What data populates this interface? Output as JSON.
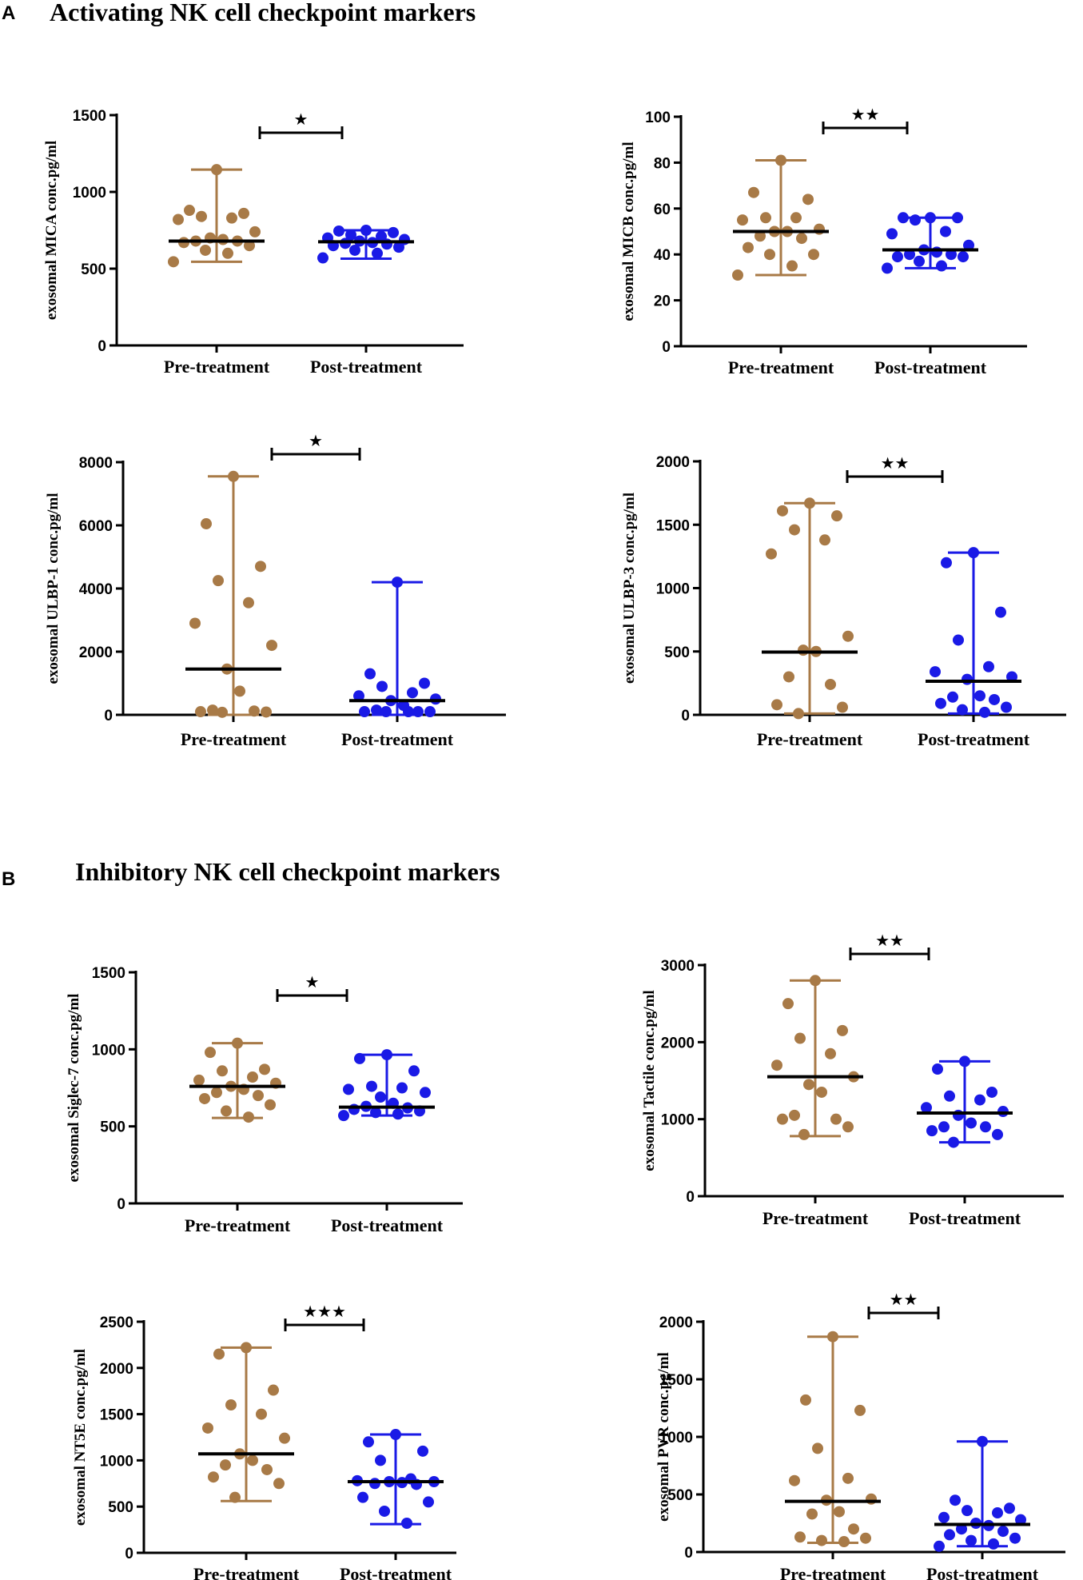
{
  "figure": {
    "sections": [
      {
        "letter": "A",
        "title": "Activating  NK cell checkpoint markers"
      },
      {
        "letter": "B",
        "title": "Inhibitory  NK cell checkpoint markers"
      }
    ],
    "colors": {
      "pre": "#A87A47",
      "post": "#1A1AE6",
      "median": "#000000",
      "axis": "#000000"
    }
  },
  "chart_data": [
    {
      "id": "mica",
      "type": "scatter",
      "ylabel": "exosomal MICA conc.pg/ml",
      "ylim": [
        0,
        1500
      ],
      "yticks": [
        0,
        500,
        1000,
        1500
      ],
      "categories": [
        "Pre-treatment",
        "Post-treatment"
      ],
      "significance": "★",
      "series": [
        {
          "name": "Pre-treatment",
          "median": 680,
          "min": 545,
          "max": 1145,
          "values": [
            1145,
            880,
            860,
            840,
            830,
            820,
            740,
            700,
            690,
            680,
            680,
            670,
            650,
            620,
            600,
            545
          ]
        },
        {
          "name": "Post-treatment",
          "median": 675,
          "min": 565,
          "max": 750,
          "values": [
            750,
            745,
            735,
            720,
            710,
            700,
            690,
            680,
            670,
            665,
            660,
            650,
            640,
            620,
            600,
            570
          ]
        }
      ]
    },
    {
      "id": "micb",
      "type": "scatter",
      "ylabel": "exosomal MICB conc.pg/ml",
      "ylim": [
        0,
        100
      ],
      "yticks": [
        0,
        20,
        40,
        60,
        80,
        100
      ],
      "categories": [
        "Pre-treatment",
        "Post-treatment"
      ],
      "significance": "★★",
      "series": [
        {
          "name": "Pre-treatment",
          "median": 50,
          "min": 31,
          "max": 81,
          "values": [
            81,
            67,
            64,
            56,
            56,
            55,
            51,
            50,
            50,
            48,
            47,
            43,
            40,
            40,
            35,
            31
          ]
        },
        {
          "name": "Post-treatment",
          "median": 42,
          "min": 34,
          "max": 56,
          "values": [
            56,
            56,
            56,
            55,
            50,
            49,
            44,
            42,
            41,
            40,
            40,
            39,
            39,
            37,
            35,
            34
          ]
        }
      ]
    },
    {
      "id": "ulbp1",
      "type": "scatter",
      "ylabel": "exosomal ULBP-1 conc.pg/ml",
      "ylim": [
        0,
        8000
      ],
      "yticks": [
        0,
        2000,
        4000,
        6000,
        8000
      ],
      "categories": [
        "Pre-treatment",
        "Post-treatment"
      ],
      "significance": "★",
      "series": [
        {
          "name": "Pre-treatment",
          "median": 1450,
          "min": 0,
          "max": 7550,
          "values": [
            7550,
            6050,
            4700,
            4250,
            3550,
            2900,
            2200,
            1450,
            750,
            150,
            120,
            100,
            90,
            80
          ]
        },
        {
          "name": "Post-treatment",
          "median": 450,
          "min": 0,
          "max": 4200,
          "values": [
            4200,
            1300,
            1000,
            900,
            700,
            600,
            500,
            450,
            300,
            150,
            100,
            100,
            100,
            100,
            100
          ]
        }
      ]
    },
    {
      "id": "ulbp3",
      "type": "scatter",
      "ylabel": "exosomal ULBP-3 conc.pg/ml",
      "ylim": [
        0,
        2000
      ],
      "yticks": [
        0,
        500,
        1000,
        1500,
        2000
      ],
      "categories": [
        "Pre-treatment",
        "Post-treatment"
      ],
      "significance": "★★",
      "series": [
        {
          "name": "Pre-treatment",
          "median": 495,
          "min": 10,
          "max": 1670,
          "values": [
            1670,
            1610,
            1570,
            1460,
            1380,
            1270,
            620,
            510,
            500,
            300,
            240,
            80,
            60,
            10
          ]
        },
        {
          "name": "Post-treatment",
          "median": 265,
          "min": 10,
          "max": 1280,
          "values": [
            1280,
            1200,
            810,
            590,
            380,
            340,
            300,
            280,
            150,
            140,
            120,
            90,
            60,
            40,
            20
          ]
        }
      ]
    },
    {
      "id": "siglec7",
      "type": "scatter",
      "ylabel": "exosomal Siglec-7 conc.pg/ml",
      "ylim": [
        0,
        1500
      ],
      "yticks": [
        0,
        500,
        1000,
        1500
      ],
      "categories": [
        "Pre-treatment",
        "Post-treatment"
      ],
      "significance": "★",
      "series": [
        {
          "name": "Pre-treatment",
          "median": 760,
          "min": 555,
          "max": 1040,
          "values": [
            1040,
            980,
            870,
            860,
            820,
            800,
            780,
            760,
            740,
            720,
            700,
            680,
            640,
            600,
            560
          ]
        },
        {
          "name": "Post-treatment",
          "median": 625,
          "min": 570,
          "max": 965,
          "values": [
            965,
            940,
            860,
            760,
            750,
            740,
            720,
            690,
            650,
            630,
            620,
            610,
            600,
            590,
            580,
            570
          ]
        }
      ]
    },
    {
      "id": "tactile",
      "type": "scatter",
      "ylabel": "exosomal Tactile conc.pg/ml",
      "ylim": [
        0,
        3000
      ],
      "yticks": [
        0,
        1000,
        2000,
        3000
      ],
      "categories": [
        "Pre-treatment",
        "Post-treatment"
      ],
      "significance": "★★",
      "series": [
        {
          "name": "Pre-treatment",
          "median": 1550,
          "min": 780,
          "max": 2800,
          "values": [
            2800,
            2500,
            2150,
            2050,
            1850,
            1700,
            1550,
            1450,
            1350,
            1050,
            1000,
            1000,
            900,
            800
          ]
        },
        {
          "name": "Post-treatment",
          "median": 1080,
          "min": 700,
          "max": 1750,
          "values": [
            1750,
            1650,
            1350,
            1300,
            1250,
            1150,
            1100,
            1050,
            950,
            900,
            900,
            850,
            800,
            700
          ]
        }
      ]
    },
    {
      "id": "nt5e",
      "type": "scatter",
      "ylabel": "exosomal NT5E conc.pg/ml",
      "ylim": [
        0,
        2500
      ],
      "yticks": [
        0,
        500,
        1000,
        1500,
        2000,
        2500
      ],
      "categories": [
        "Pre-treatment",
        "Post-treatment"
      ],
      "significance": "★★★",
      "series": [
        {
          "name": "Pre-treatment",
          "median": 1070,
          "min": 560,
          "max": 2220,
          "values": [
            2220,
            2150,
            1760,
            1600,
            1500,
            1350,
            1240,
            1070,
            1000,
            950,
            900,
            820,
            750,
            600
          ]
        },
        {
          "name": "Post-treatment",
          "median": 770,
          "min": 310,
          "max": 1280,
          "values": [
            1280,
            1200,
            1100,
            1000,
            800,
            780,
            770,
            770,
            760,
            750,
            740,
            600,
            550,
            450,
            320
          ]
        }
      ]
    },
    {
      "id": "pvr",
      "type": "scatter",
      "ylabel": "exosomal PVR conc.pg/ml",
      "ylim": [
        0,
        2000
      ],
      "yticks": [
        0,
        500,
        1000,
        1500,
        2000
      ],
      "categories": [
        "Pre-treatment",
        "Post-treatment"
      ],
      "significance": "★★",
      "series": [
        {
          "name": "Pre-treatment",
          "median": 440,
          "min": 80,
          "max": 1870,
          "values": [
            1870,
            1320,
            1230,
            900,
            640,
            620,
            460,
            450,
            350,
            330,
            200,
            130,
            120,
            100,
            90
          ]
        },
        {
          "name": "Post-treatment",
          "median": 240,
          "min": 50,
          "max": 960,
          "values": [
            960,
            450,
            380,
            360,
            340,
            300,
            280,
            250,
            230,
            200,
            180,
            150,
            120,
            100,
            70,
            50
          ]
        }
      ]
    }
  ]
}
